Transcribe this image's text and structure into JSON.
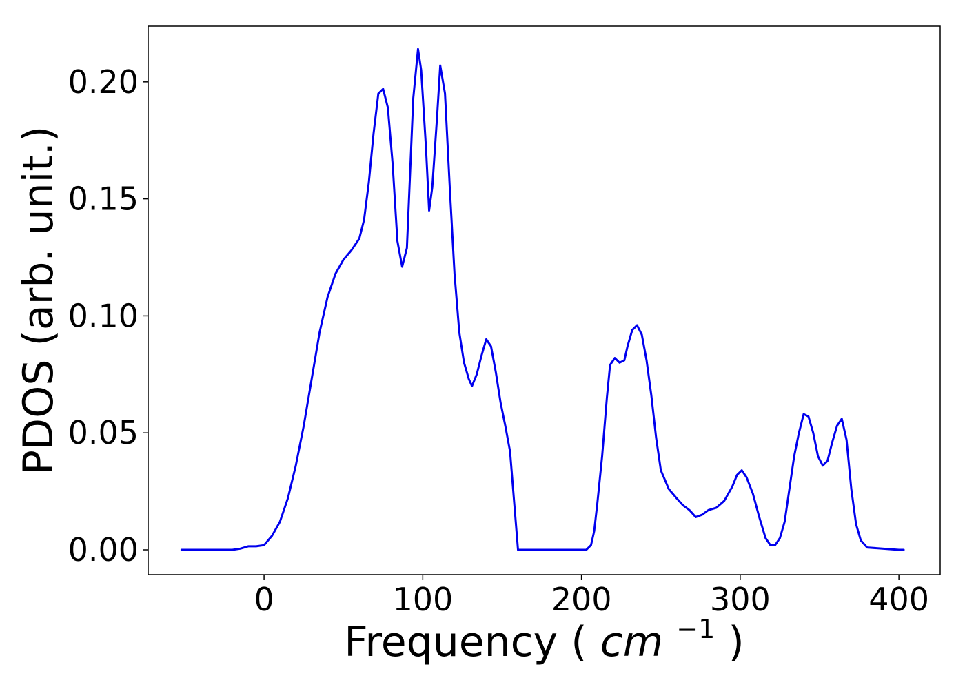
{
  "chart_data": {
    "type": "line",
    "title": "",
    "xlabel": "Frequency",
    "xlabel_unit_base": "cm",
    "xlabel_unit_exp": "−1",
    "ylabel": "PDOS (arb. unit.)",
    "xlim": [
      -73,
      426
    ],
    "ylim": [
      -0.0106,
      0.2238
    ],
    "xticks": [
      0,
      100,
      200,
      300,
      400
    ],
    "xtick_labels": [
      "0",
      "100",
      "200",
      "300",
      "400"
    ],
    "yticks": [
      0.0,
      0.05,
      0.1,
      0.15,
      0.2
    ],
    "ytick_labels": [
      "0.00",
      "0.05",
      "0.10",
      "0.15",
      "0.20"
    ],
    "grid": false,
    "legend": "none",
    "line_color": "#0000ee",
    "series": [
      {
        "x": [
          -52,
          -40,
          -30,
          -20,
          -15,
          -10,
          -5,
          0,
          5,
          10,
          15,
          20,
          25,
          30,
          35,
          40,
          45,
          50,
          55,
          60,
          63,
          66,
          69,
          72,
          75,
          78,
          81,
          84,
          87,
          90,
          94,
          97,
          99,
          102,
          104,
          106,
          109,
          111,
          114,
          117,
          120,
          123,
          126,
          129,
          131,
          134,
          137,
          140,
          143,
          146,
          149,
          152,
          155,
          160,
          180,
          200,
          203,
          206,
          208,
          210,
          213,
          216,
          218,
          221,
          224,
          227,
          229,
          232,
          235,
          238,
          241,
          244,
          247,
          250,
          255,
          260,
          264,
          268,
          272,
          276,
          280,
          285,
          290,
          295,
          298,
          301,
          304,
          308,
          312,
          316,
          319,
          322,
          325,
          328,
          331,
          334,
          337,
          340,
          343,
          346,
          349,
          352,
          355,
          358,
          361,
          364,
          367,
          370,
          373,
          376,
          380,
          400,
          403
        ],
        "y": [
          0.0,
          0.0,
          0.0,
          0.0,
          0.0005,
          0.0015,
          0.0015,
          0.002,
          0.006,
          0.012,
          0.022,
          0.036,
          0.053,
          0.073,
          0.093,
          0.108,
          0.118,
          0.124,
          0.128,
          0.133,
          0.141,
          0.157,
          0.178,
          0.195,
          0.197,
          0.189,
          0.165,
          0.132,
          0.121,
          0.129,
          0.193,
          0.214,
          0.205,
          0.172,
          0.145,
          0.155,
          0.185,
          0.207,
          0.195,
          0.155,
          0.118,
          0.093,
          0.08,
          0.073,
          0.07,
          0.075,
          0.083,
          0.09,
          0.087,
          0.076,
          0.063,
          0.053,
          0.042,
          0.0,
          0.0,
          0.0,
          0.0,
          0.002,
          0.008,
          0.02,
          0.04,
          0.065,
          0.079,
          0.082,
          0.08,
          0.081,
          0.087,
          0.094,
          0.096,
          0.092,
          0.081,
          0.066,
          0.048,
          0.034,
          0.026,
          0.022,
          0.019,
          0.017,
          0.014,
          0.015,
          0.017,
          0.018,
          0.021,
          0.027,
          0.032,
          0.034,
          0.031,
          0.024,
          0.014,
          0.005,
          0.002,
          0.002,
          0.005,
          0.012,
          0.026,
          0.04,
          0.05,
          0.058,
          0.057,
          0.05,
          0.04,
          0.036,
          0.038,
          0.046,
          0.053,
          0.056,
          0.047,
          0.026,
          0.011,
          0.004,
          0.001,
          0.0,
          0.0
        ]
      }
    ]
  }
}
